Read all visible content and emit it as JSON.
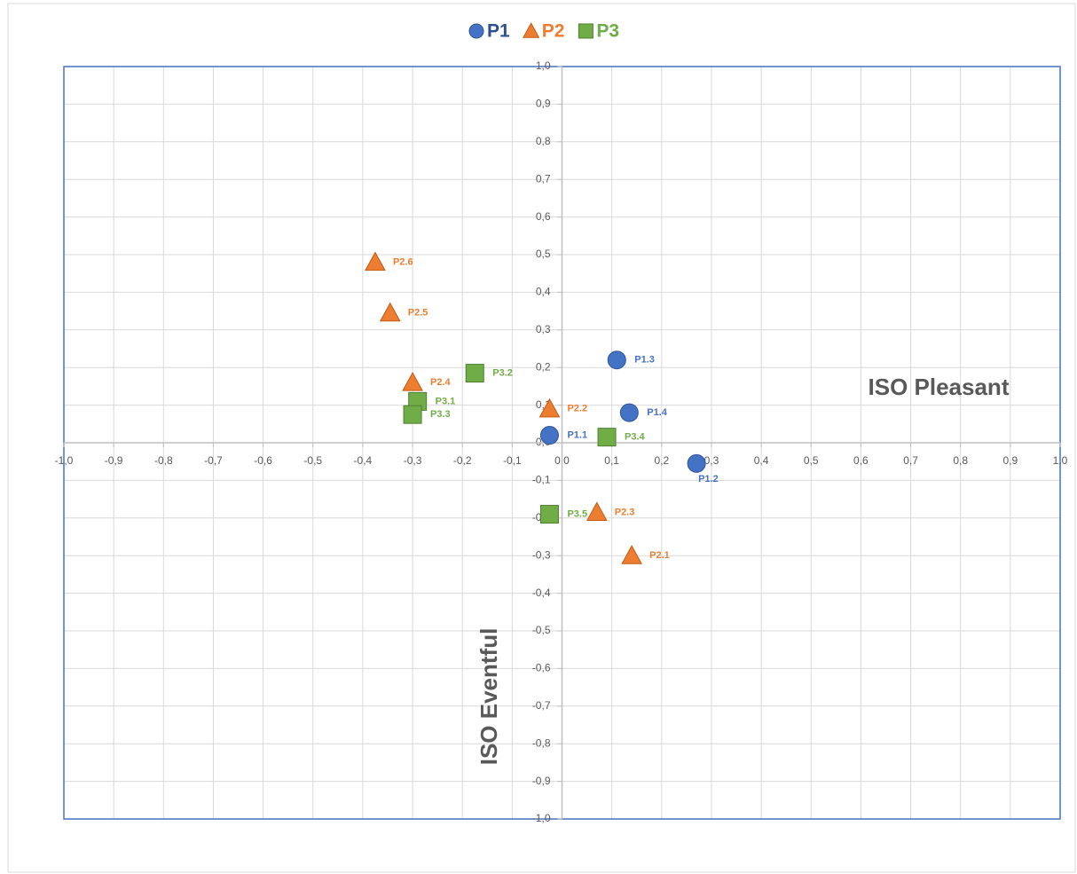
{
  "chart_data": {
    "type": "scatter",
    "xlabel": "ISO Pleasant",
    "ylabel": "ISO Eventful",
    "xlim": [
      -1,
      1
    ],
    "ylim": [
      -1,
      1
    ],
    "xticks": [
      {
        "value": -1,
        "label": "-1,0"
      },
      {
        "value": -0.9,
        "label": "-0,9"
      },
      {
        "value": -0.8,
        "label": "-0,8"
      },
      {
        "value": -0.7,
        "label": "-0,7"
      },
      {
        "value": -0.6,
        "label": "-0,6"
      },
      {
        "value": -0.5,
        "label": "-0,5"
      },
      {
        "value": -0.4,
        "label": "-0,4"
      },
      {
        "value": -0.3,
        "label": "-0,3"
      },
      {
        "value": -0.2,
        "label": "-0,2"
      },
      {
        "value": -0.1,
        "label": "-0,1"
      },
      {
        "value": 0,
        "label": "0,0"
      },
      {
        "value": 0.1,
        "label": "0,1"
      },
      {
        "value": 0.2,
        "label": "0,2"
      },
      {
        "value": 0.3,
        "label": "0,3"
      },
      {
        "value": 0.4,
        "label": "0,4"
      },
      {
        "value": 0.5,
        "label": "0,5"
      },
      {
        "value": 0.6,
        "label": "0,6"
      },
      {
        "value": 0.7,
        "label": "0,7"
      },
      {
        "value": 0.8,
        "label": "0,8"
      },
      {
        "value": 0.9,
        "label": "0,9"
      },
      {
        "value": 1,
        "label": "1,0"
      }
    ],
    "yticks": [
      {
        "value": -1,
        "label": "-1,0"
      },
      {
        "value": -0.9,
        "label": "-0,9"
      },
      {
        "value": -0.8,
        "label": "-0,8"
      },
      {
        "value": -0.7,
        "label": "-0,7"
      },
      {
        "value": -0.6,
        "label": "-0,6"
      },
      {
        "value": -0.5,
        "label": "-0,5"
      },
      {
        "value": -0.4,
        "label": "-0,4"
      },
      {
        "value": -0.3,
        "label": "-0,3"
      },
      {
        "value": -0.2,
        "label": "-0,2"
      },
      {
        "value": -0.1,
        "label": "-0,1"
      },
      {
        "value": 0,
        "label": "0,0"
      },
      {
        "value": 0.1,
        "label": "0,1"
      },
      {
        "value": 0.2,
        "label": "0,2"
      },
      {
        "value": 0.3,
        "label": "0,3"
      },
      {
        "value": 0.4,
        "label": "0,4"
      },
      {
        "value": 0.5,
        "label": "0,5"
      },
      {
        "value": 0.6,
        "label": "0,6"
      },
      {
        "value": 0.7,
        "label": "0,7"
      },
      {
        "value": 0.8,
        "label": "0,8"
      },
      {
        "value": 0.9,
        "label": "0,9"
      },
      {
        "value": 1,
        "label": "1,0"
      }
    ],
    "grid": true,
    "legend": "top",
    "series": [
      {
        "name": "P1",
        "color": "#4472c4",
        "marker": "circle",
        "labels": [
          "P1.1",
          "P1.2",
          "P1.3",
          "P1.4"
        ],
        "x": [
          -0.025,
          0.27,
          0.11,
          0.135
        ],
        "values": [
          0.02,
          -0.055,
          0.22,
          0.08
        ]
      },
      {
        "name": "P2",
        "color": "#ed7d31",
        "marker": "triangle",
        "labels": [
          "P2.1",
          "P2.2",
          "P2.3",
          "P2.4",
          "P2.5",
          "P2.6"
        ],
        "x": [
          0.14,
          -0.025,
          0.07,
          -0.3,
          -0.345,
          -0.375
        ],
        "values": [
          -0.3,
          0.09,
          -0.185,
          0.16,
          0.345,
          0.48
        ]
      },
      {
        "name": "P3",
        "color": "#70ad47",
        "marker": "square",
        "labels": [
          "P3.1",
          "P3.2",
          "P3.3",
          "P3.4",
          "P3.5"
        ],
        "x": [
          -0.29,
          -0.175,
          -0.3,
          0.09,
          -0.025
        ],
        "values": [
          0.11,
          0.185,
          0.075,
          0.015,
          -0.19
        ]
      }
    ]
  }
}
